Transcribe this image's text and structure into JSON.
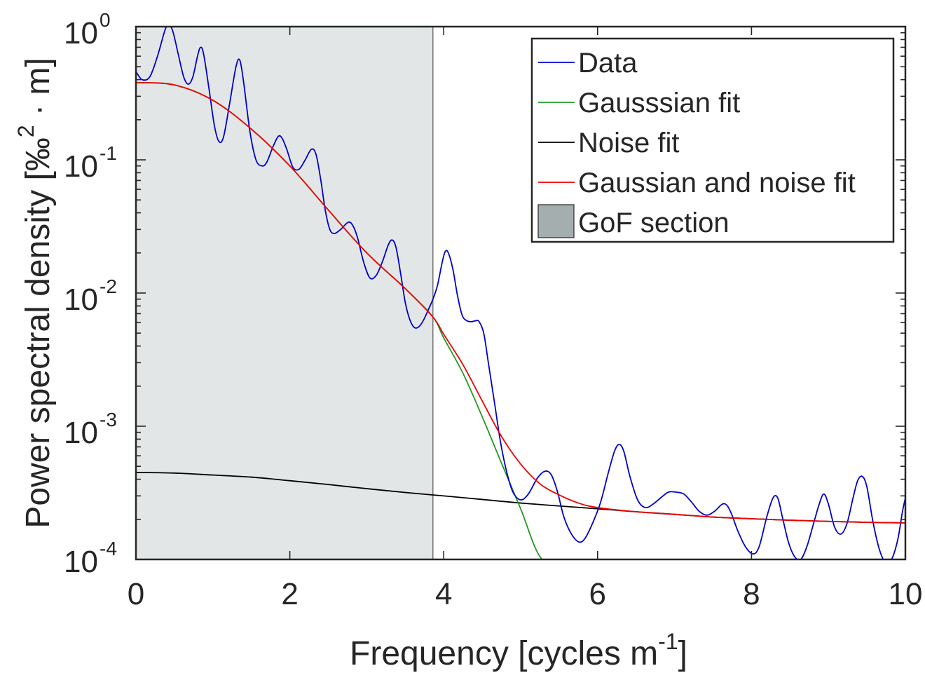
{
  "chart_data": {
    "type": "line",
    "xlabel": "Frequency [cycles m",
    "xlabel_sup": "-1",
    "xlabel_end": "]",
    "ylabel": "Power spectral density [‰",
    "ylabel_sup": "2",
    "ylabel_end": " · m]",
    "xlim": [
      0,
      10
    ],
    "ylim": [
      0.0001,
      1
    ],
    "yscale": "log",
    "grid": false,
    "legend_position": "top-right",
    "x_ticks": [
      "0",
      "2",
      "4",
      "6",
      "8",
      "10"
    ],
    "x_tick_values": [
      0,
      2,
      4,
      6,
      8,
      10
    ],
    "y_ticks": [
      {
        "base": "10",
        "exp": "0",
        "value": 1
      },
      {
        "base": "10",
        "exp": "-1",
        "value": 0.1
      },
      {
        "base": "10",
        "exp": "-2",
        "value": 0.01
      },
      {
        "base": "10",
        "exp": "-3",
        "value": 0.001
      },
      {
        "base": "10",
        "exp": "-4",
        "value": 0.0001
      }
    ],
    "gof_section": {
      "name": "GoF section",
      "x_start": 0,
      "x_end": 3.86,
      "color": "#a5aeae"
    },
    "series": [
      {
        "name": "Data",
        "color": "#0000cc",
        "x": [
          0.0,
          0.08,
          0.18,
          0.28,
          0.38,
          0.43,
          0.48,
          0.55,
          0.62,
          0.68,
          0.74,
          0.8,
          0.84,
          0.88,
          0.95,
          1.02,
          1.08,
          1.14,
          1.22,
          1.3,
          1.35,
          1.4,
          1.48,
          1.56,
          1.64,
          1.7,
          1.78,
          1.85,
          1.9,
          1.96,
          2.04,
          2.12,
          2.2,
          2.28,
          2.34,
          2.4,
          2.46,
          2.52,
          2.58,
          2.66,
          2.76,
          2.82,
          2.88,
          2.96,
          3.04,
          3.12,
          3.2,
          3.28,
          3.33,
          3.38,
          3.44,
          3.5,
          3.56,
          3.62,
          3.68,
          3.74,
          3.8,
          3.86,
          3.92,
          3.98,
          4.02,
          4.06,
          4.12,
          4.18,
          4.24,
          4.3,
          4.36,
          4.42,
          4.46,
          4.52,
          4.58,
          4.66,
          4.74,
          4.82,
          4.9,
          5.0,
          5.1,
          5.22,
          5.32,
          5.4,
          5.48,
          5.56,
          5.66,
          5.76,
          5.84,
          5.94,
          6.04,
          6.14,
          6.22,
          6.28,
          6.34,
          6.42,
          6.52,
          6.62,
          6.72,
          6.82,
          6.92,
          7.02,
          7.12,
          7.22,
          7.32,
          7.42,
          7.52,
          7.62,
          7.68,
          7.74,
          7.82,
          7.92,
          8.02,
          8.1,
          8.2,
          8.28,
          8.34,
          8.4,
          8.48,
          8.56,
          8.64,
          8.72,
          8.8,
          8.88,
          8.94,
          9.0,
          9.08,
          9.16,
          9.24,
          9.32,
          9.38,
          9.44,
          9.5,
          9.58,
          9.66,
          9.74,
          9.82,
          9.9,
          9.96,
          10.0
        ],
        "y": [
          0.46,
          0.4,
          0.42,
          0.6,
          0.95,
          1.02,
          0.92,
          0.62,
          0.42,
          0.37,
          0.42,
          0.6,
          0.7,
          0.62,
          0.34,
          0.18,
          0.137,
          0.15,
          0.27,
          0.5,
          0.56,
          0.38,
          0.165,
          0.1,
          0.09,
          0.096,
          0.125,
          0.15,
          0.145,
          0.12,
          0.088,
          0.085,
          0.1,
          0.12,
          0.11,
          0.072,
          0.042,
          0.03,
          0.028,
          0.03,
          0.034,
          0.032,
          0.026,
          0.017,
          0.013,
          0.0135,
          0.017,
          0.023,
          0.025,
          0.022,
          0.014,
          0.0085,
          0.0063,
          0.0055,
          0.0056,
          0.0063,
          0.0075,
          0.009,
          0.0115,
          0.017,
          0.0205,
          0.02,
          0.015,
          0.0095,
          0.0068,
          0.0062,
          0.0061,
          0.0062,
          0.0061,
          0.005,
          0.003,
          0.0015,
          0.00075,
          0.00045,
          0.00032,
          0.00028,
          0.00031,
          0.00041,
          0.00046,
          0.00043,
          0.00032,
          0.00021,
          0.000155,
          0.000135,
          0.000145,
          0.00019,
          0.00027,
          0.00045,
          0.00065,
          0.00073,
          0.00065,
          0.00042,
          0.00028,
          0.000245,
          0.00026,
          0.00029,
          0.00032,
          0.00032,
          0.00031,
          0.00027,
          0.00023,
          0.000215,
          0.00023,
          0.00026,
          0.000255,
          0.00022,
          0.000165,
          0.000125,
          0.00011,
          0.000125,
          0.00021,
          0.00029,
          0.00029,
          0.00021,
          0.000135,
          0.000105,
          0.0001,
          0.000125,
          0.00018,
          0.00026,
          0.00031,
          0.00026,
          0.000175,
          0.000155,
          0.000185,
          0.00029,
          0.00039,
          0.00042,
          0.00035,
          0.00019,
          0.00012,
          9.5e-05,
          0.0001,
          0.00014,
          0.000225,
          0.00029
        ]
      },
      {
        "name": "Gausssian fit",
        "color": "#229922",
        "x": [
          0,
          0.5,
          1.0,
          1.5,
          2.0,
          2.5,
          3.0,
          3.5,
          3.86,
          4.0,
          4.25,
          4.5,
          4.75,
          5.0,
          5.25,
          5.5
        ],
        "y": [
          0.38,
          0.365,
          0.28,
          0.17,
          0.09,
          0.042,
          0.02,
          0.0108,
          0.0066,
          0.0046,
          0.0025,
          0.00118,
          0.00053,
          0.00024,
          0.000105,
          9.35e-05
        ]
      },
      {
        "name": "Noise fit",
        "color": "#000000",
        "x": [
          0,
          0.5,
          1.0,
          1.5,
          2.0,
          2.5,
          3.0,
          3.5,
          4.0,
          4.5,
          5.0,
          5.5,
          6.0,
          6.5,
          7.0,
          7.5,
          8.0,
          8.5,
          9.0,
          9.5,
          10.0
        ],
        "y": [
          0.00045,
          0.000445,
          0.00043,
          0.000415,
          0.00039,
          0.000365,
          0.00034,
          0.000318,
          0.0003,
          0.000282,
          0.000265,
          0.000252,
          0.00024,
          0.000228,
          0.000218,
          0.000208,
          0.000202,
          0.000197,
          0.000193,
          0.00019,
          0.000188
        ]
      },
      {
        "name": "Gaussian and noise fit",
        "color": "#ee0000",
        "x": [
          0,
          0.5,
          1.0,
          1.5,
          2.0,
          2.5,
          3.0,
          3.5,
          3.86,
          4.0,
          4.25,
          4.5,
          4.75,
          5.0,
          5.25,
          5.5,
          5.75,
          6.0,
          6.5,
          7.0,
          7.5,
          8.0,
          8.5,
          9.0,
          9.5,
          10.0
        ],
        "y": [
          0.38,
          0.365,
          0.28,
          0.17,
          0.09,
          0.042,
          0.02,
          0.0108,
          0.0066,
          0.0049,
          0.0029,
          0.00155,
          0.00084,
          0.00052,
          0.00037,
          0.000305,
          0.000265,
          0.000245,
          0.000228,
          0.000218,
          0.000208,
          0.000202,
          0.000197,
          0.000193,
          0.00019,
          0.000188
        ]
      }
    ]
  }
}
